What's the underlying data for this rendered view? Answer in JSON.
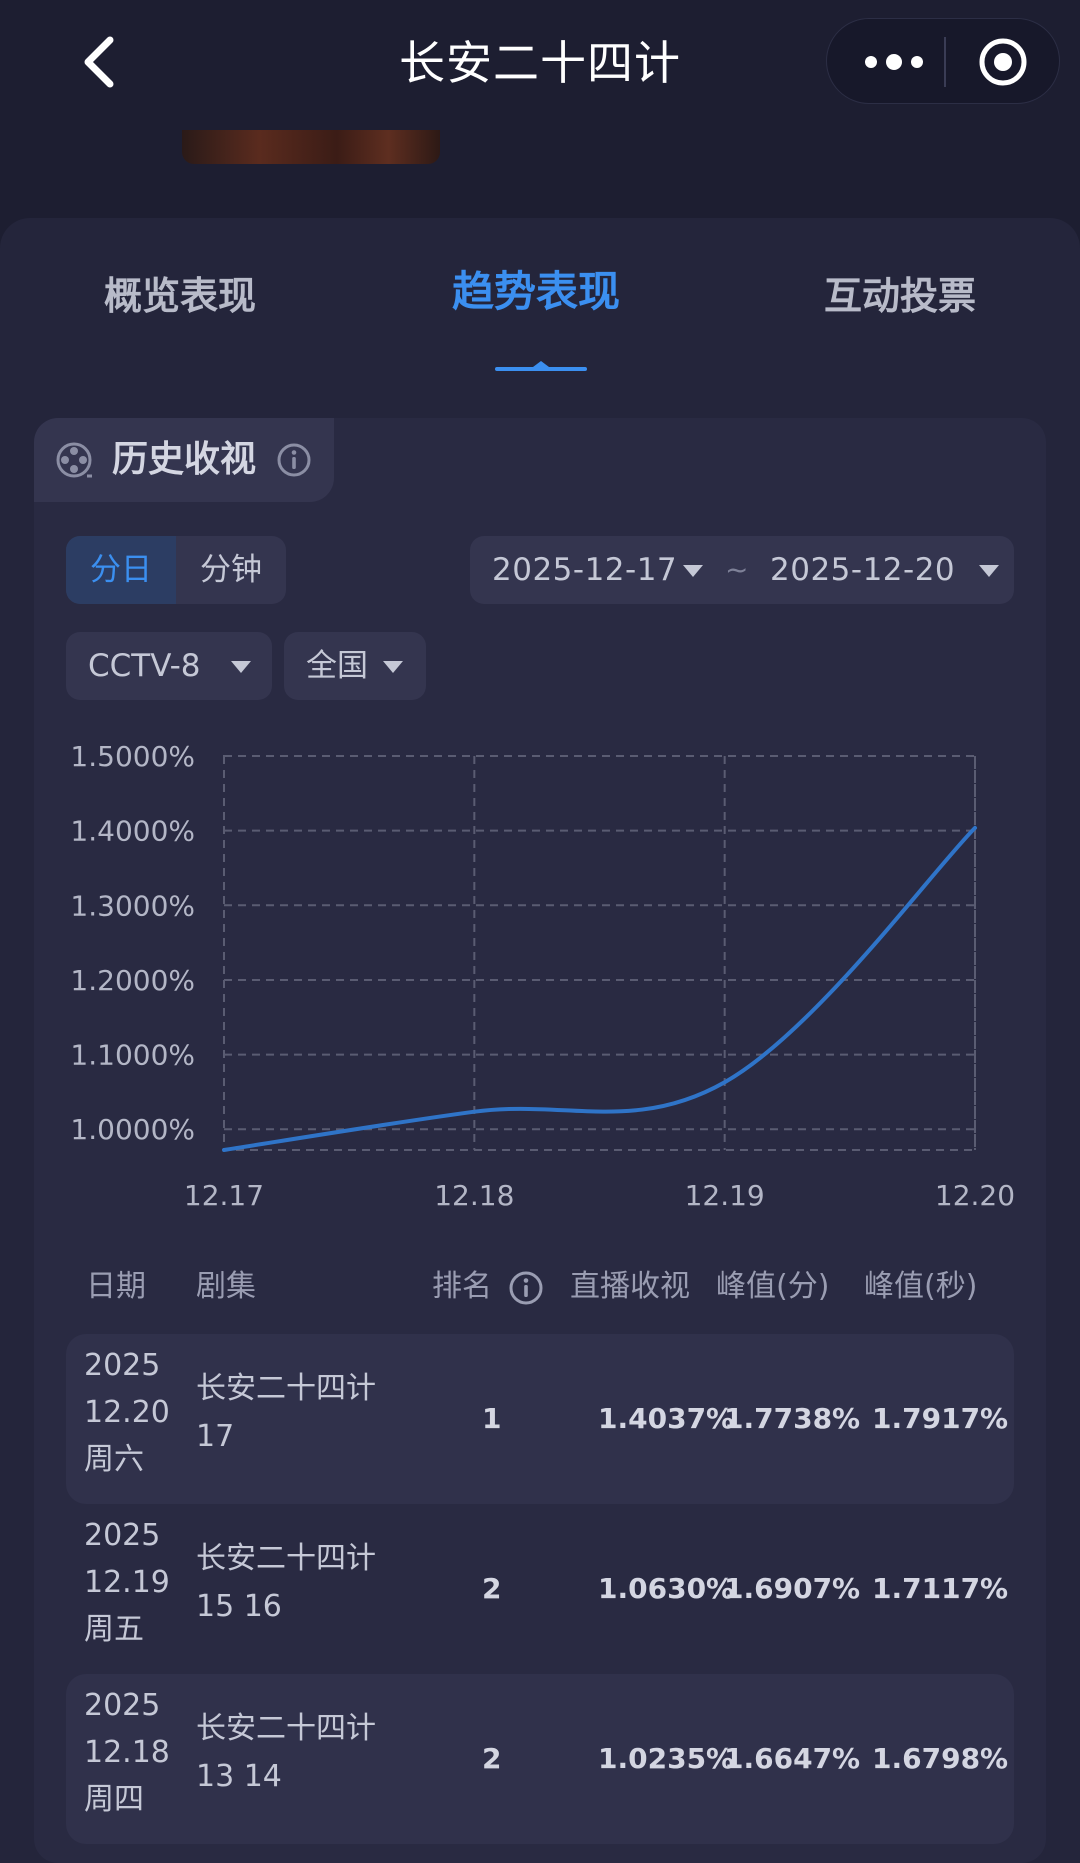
{
  "header": {
    "title": "长安二十四计"
  },
  "tabs": [
    {
      "label": "概览表现",
      "active": false
    },
    {
      "label": "趋势表现",
      "active": true
    },
    {
      "label": "互动投票",
      "active": false
    }
  ],
  "card": {
    "title": "历史收视"
  },
  "filters": {
    "granularity": [
      {
        "label": "分日",
        "active": true
      },
      {
        "label": "分钟",
        "active": false
      }
    ],
    "start_date": "2025-12-17",
    "range_sep": "~",
    "end_date": "2025-12-20",
    "channel": "CCTV-8",
    "region": "全国"
  },
  "chart_data": {
    "type": "line",
    "x": [
      "12.17",
      "12.18",
      "12.19",
      "12.20"
    ],
    "series": [
      {
        "values": [
          0.9722,
          1.0235,
          1.063,
          1.4037
        ]
      }
    ],
    "y_ticks": [
      "1.0000%",
      "1.1000%",
      "1.2000%",
      "1.3000%",
      "1.4000%",
      "1.5000%"
    ],
    "ylim": [
      0.9722,
      1.5
    ],
    "grid": true,
    "color": "#2f74c8"
  },
  "table": {
    "columns": [
      "日期",
      "剧集",
      "排名",
      "直播收视",
      "峰值(分)",
      "峰值(秒)"
    ],
    "rows": [
      {
        "year": "2025",
        "date": "12.20",
        "weekday": "周六",
        "show": "长安二十四计",
        "episode": "17",
        "rank": "1",
        "live": "1.4037%",
        "peak_min": "1.7738%",
        "peak_sec": "1.7917%"
      },
      {
        "year": "2025",
        "date": "12.19",
        "weekday": "周五",
        "show": "长安二十四计",
        "episode": "15 16",
        "rank": "2",
        "live": "1.0630%",
        "peak_min": "1.6907%",
        "peak_sec": "1.7117%"
      },
      {
        "year": "2025",
        "date": "12.18",
        "weekday": "周四",
        "show": "长安二十四计",
        "episode": "13 14",
        "rank": "2",
        "live": "1.0235%",
        "peak_min": "1.6647%",
        "peak_sec": "1.6798%"
      }
    ]
  },
  "colors": {
    "background": "#1d1e31",
    "panel": "#24253b",
    "accent": "#3b8ff0",
    "line": "#2f74c8"
  }
}
